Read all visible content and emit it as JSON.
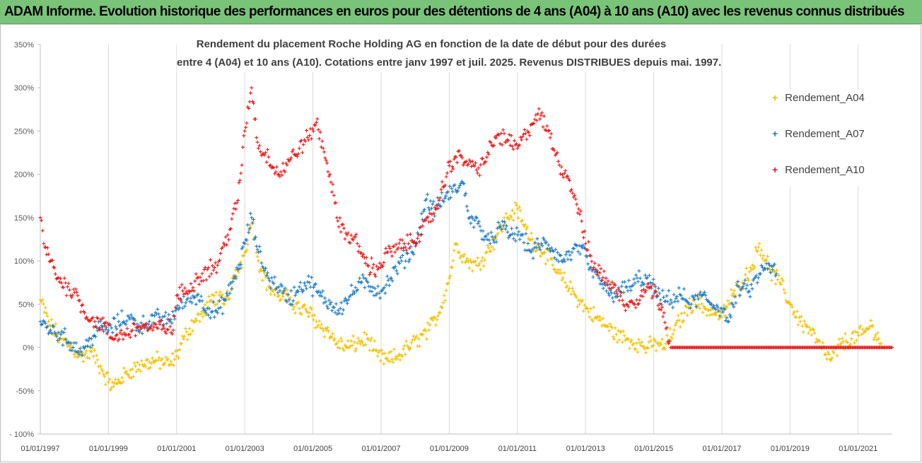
{
  "header": {
    "banner_title": "ADAM Informe. Evolution historique des performances en euros pour des détentions de 4 ans (A04) à 10 ans (A10) avec les revenus connus distribués"
  },
  "chart_data": {
    "type": "scatter",
    "title_line1": "Rendement du placement Roche Holding AG en fonction de la date de début pour des durées",
    "title_line2": "entre 4 (A04) et 10 ans (A10).  Cotations entre janv 1997 et juil. 2025. Revenus DISTRIBUES depuis mai. 1997.",
    "y_axis": {
      "min": -100,
      "max": 350,
      "step": 50,
      "tick_labels": [
        "- 100%",
        "-50%",
        "0%",
        "50%",
        "100%",
        "150%",
        "200%",
        "250%",
        "300%",
        "350%"
      ]
    },
    "x_axis": {
      "range": [
        "1997-01-01",
        "2022-01-01"
      ],
      "tick_labels": [
        "01/01/1997",
        "01/01/1999",
        "01/01/2001",
        "01/01/2003",
        "01/01/2005",
        "01/01/2007",
        "01/01/2009",
        "01/01/2011",
        "01/01/2013",
        "01/01/2015",
        "01/01/2017",
        "01/01/2019",
        "01/01/2021"
      ]
    },
    "grid": {
      "horizontal": false,
      "vertical": true
    },
    "legend_position": "right",
    "marker": "+",
    "series": [
      {
        "name": "Rendement_A04",
        "color": "#f2c100",
        "points": [
          [
            1997.0,
            55
          ],
          [
            1997.3,
            25
          ],
          [
            1997.6,
            10
          ],
          [
            1997.9,
            0
          ],
          [
            1998.2,
            -10
          ],
          [
            1998.5,
            -5
          ],
          [
            1998.8,
            -25
          ],
          [
            1999.0,
            -40
          ],
          [
            1999.15,
            -45
          ],
          [
            1999.4,
            -35
          ],
          [
            1999.7,
            -25
          ],
          [
            2000.0,
            -20
          ],
          [
            2000.4,
            -15
          ],
          [
            2000.8,
            -20
          ],
          [
            2001.0,
            -10
          ],
          [
            2001.2,
            10
          ],
          [
            2001.5,
            30
          ],
          [
            2001.8,
            40
          ],
          [
            2002.1,
            60
          ],
          [
            2002.4,
            50
          ],
          [
            2002.7,
            80
          ],
          [
            2003.0,
            110
          ],
          [
            2003.2,
            150
          ],
          [
            2003.4,
            100
          ],
          [
            2003.7,
            70
          ],
          [
            2004.0,
            60
          ],
          [
            2004.3,
            55
          ],
          [
            2004.6,
            45
          ],
          [
            2004.9,
            40
          ],
          [
            2005.1,
            30
          ],
          [
            2005.4,
            20
          ],
          [
            2005.7,
            5
          ],
          [
            2006.0,
            0
          ],
          [
            2006.3,
            5
          ],
          [
            2006.6,
            10
          ],
          [
            2006.9,
            -10
          ],
          [
            2007.2,
            -15
          ],
          [
            2007.5,
            -10
          ],
          [
            2007.8,
            0
          ],
          [
            2008.1,
            10
          ],
          [
            2008.4,
            20
          ],
          [
            2008.7,
            40
          ],
          [
            2009.0,
            80
          ],
          [
            2009.2,
            120
          ],
          [
            2009.5,
            100
          ],
          [
            2009.8,
            95
          ],
          [
            2010.1,
            110
          ],
          [
            2010.4,
            130
          ],
          [
            2010.7,
            150
          ],
          [
            2011.0,
            160
          ],
          [
            2011.2,
            140
          ],
          [
            2011.5,
            120
          ],
          [
            2011.8,
            110
          ],
          [
            2012.1,
            90
          ],
          [
            2012.4,
            75
          ],
          [
            2012.7,
            60
          ],
          [
            2013.0,
            45
          ],
          [
            2013.3,
            35
          ],
          [
            2013.6,
            25
          ],
          [
            2013.9,
            15
          ],
          [
            2014.2,
            10
          ],
          [
            2014.5,
            5
          ],
          [
            2014.8,
            0
          ],
          [
            2015.1,
            5
          ],
          [
            2015.3,
            0
          ],
          [
            2015.6,
            20
          ],
          [
            2015.9,
            40
          ],
          [
            2016.2,
            55
          ],
          [
            2016.5,
            45
          ],
          [
            2016.8,
            40
          ],
          [
            2017.0,
            35
          ],
          [
            2017.3,
            60
          ],
          [
            2017.6,
            75
          ],
          [
            2017.9,
            95
          ],
          [
            2018.1,
            120
          ],
          [
            2018.4,
            90
          ],
          [
            2018.7,
            75
          ],
          [
            2019.0,
            50
          ],
          [
            2019.3,
            30
          ],
          [
            2019.6,
            20
          ],
          [
            2019.9,
            0
          ],
          [
            2020.2,
            -15
          ],
          [
            2020.5,
            5
          ],
          [
            2020.8,
            10
          ],
          [
            2021.1,
            15
          ],
          [
            2021.4,
            25
          ],
          [
            2021.6,
            10
          ],
          [
            2021.7,
            0
          ]
        ]
      },
      {
        "name": "Rendement_A07",
        "color": "#1f7ac2",
        "points": [
          [
            1997.0,
            30
          ],
          [
            1997.3,
            20
          ],
          [
            1997.6,
            15
          ],
          [
            1997.9,
            5
          ],
          [
            1998.2,
            -5
          ],
          [
            1998.5,
            10
          ],
          [
            1998.8,
            25
          ],
          [
            1999.0,
            20
          ],
          [
            1999.3,
            30
          ],
          [
            1999.6,
            35
          ],
          [
            1999.9,
            25
          ],
          [
            2000.2,
            30
          ],
          [
            2000.5,
            35
          ],
          [
            2000.8,
            30
          ],
          [
            2001.0,
            45
          ],
          [
            2001.3,
            55
          ],
          [
            2001.6,
            60
          ],
          [
            2001.9,
            45
          ],
          [
            2002.2,
            40
          ],
          [
            2002.5,
            60
          ],
          [
            2002.8,
            90
          ],
          [
            2003.0,
            120
          ],
          [
            2003.2,
            150
          ],
          [
            2003.4,
            110
          ],
          [
            2003.7,
            80
          ],
          [
            2004.0,
            70
          ],
          [
            2004.3,
            55
          ],
          [
            2004.6,
            70
          ],
          [
            2004.9,
            75
          ],
          [
            2005.2,
            60
          ],
          [
            2005.5,
            50
          ],
          [
            2005.8,
            45
          ],
          [
            2006.1,
            60
          ],
          [
            2006.4,
            75
          ],
          [
            2006.7,
            70
          ],
          [
            2007.0,
            65
          ],
          [
            2007.3,
            80
          ],
          [
            2007.6,
            100
          ],
          [
            2007.9,
            110
          ],
          [
            2008.1,
            130
          ],
          [
            2008.3,
            170
          ],
          [
            2008.6,
            160
          ],
          [
            2008.9,
            175
          ],
          [
            2009.1,
            180
          ],
          [
            2009.4,
            190
          ],
          [
            2009.6,
            150
          ],
          [
            2009.9,
            140
          ],
          [
            2010.2,
            120
          ],
          [
            2010.5,
            140
          ],
          [
            2010.8,
            130
          ],
          [
            2011.1,
            130
          ],
          [
            2011.4,
            110
          ],
          [
            2011.7,
            120
          ],
          [
            2012.0,
            115
          ],
          [
            2012.3,
            100
          ],
          [
            2012.6,
            110
          ],
          [
            2012.9,
            115
          ],
          [
            2013.1,
            90
          ],
          [
            2013.4,
            80
          ],
          [
            2013.7,
            60
          ],
          [
            2014.0,
            65
          ],
          [
            2014.3,
            70
          ],
          [
            2014.6,
            80
          ],
          [
            2014.9,
            75
          ],
          [
            2015.2,
            55
          ],
          [
            2015.5,
            55
          ],
          [
            2015.8,
            60
          ],
          [
            2016.1,
            50
          ],
          [
            2016.4,
            60
          ],
          [
            2016.7,
            50
          ],
          [
            2017.0,
            45
          ],
          [
            2017.2,
            30
          ],
          [
            2017.5,
            70
          ],
          [
            2017.8,
            65
          ],
          [
            2018.1,
            85
          ],
          [
            2018.4,
            95
          ],
          [
            2018.6,
            85
          ]
        ]
      },
      {
        "name": "Rendement_A10",
        "color": "#e81818",
        "points": [
          [
            1997.0,
            150
          ],
          [
            1997.1,
            120
          ],
          [
            1997.3,
            100
          ],
          [
            1997.5,
            80
          ],
          [
            1997.8,
            70
          ],
          [
            1998.1,
            60
          ],
          [
            1998.3,
            40
          ],
          [
            1998.6,
            30
          ],
          [
            1998.9,
            25
          ],
          [
            1999.1,
            10
          ],
          [
            1999.4,
            15
          ],
          [
            1999.7,
            20
          ],
          [
            2000.0,
            25
          ],
          [
            2000.3,
            20
          ],
          [
            2000.6,
            25
          ],
          [
            2000.9,
            20
          ],
          [
            2001.0,
            60
          ],
          [
            2001.3,
            65
          ],
          [
            2001.6,
            80
          ],
          [
            2001.9,
            90
          ],
          [
            2002.2,
            95
          ],
          [
            2002.5,
            130
          ],
          [
            2002.8,
            170
          ],
          [
            2003.0,
            250
          ],
          [
            2003.2,
            300
          ],
          [
            2003.4,
            230
          ],
          [
            2003.7,
            220
          ],
          [
            2004.0,
            200
          ],
          [
            2004.3,
            215
          ],
          [
            2004.6,
            230
          ],
          [
            2004.9,
            245
          ],
          [
            2005.1,
            260
          ],
          [
            2005.3,
            230
          ],
          [
            2005.5,
            200
          ],
          [
            2005.7,
            150
          ],
          [
            2006.0,
            130
          ],
          [
            2006.3,
            120
          ],
          [
            2006.6,
            95
          ],
          [
            2006.9,
            90
          ],
          [
            2007.2,
            110
          ],
          [
            2007.5,
            115
          ],
          [
            2007.8,
            120
          ],
          [
            2008.1,
            130
          ],
          [
            2008.4,
            145
          ],
          [
            2008.7,
            170
          ],
          [
            2009.0,
            210
          ],
          [
            2009.2,
            220
          ],
          [
            2009.5,
            215
          ],
          [
            2009.8,
            205
          ],
          [
            2010.1,
            220
          ],
          [
            2010.4,
            245
          ],
          [
            2010.7,
            240
          ],
          [
            2011.0,
            230
          ],
          [
            2011.3,
            250
          ],
          [
            2011.6,
            270
          ],
          [
            2011.9,
            250
          ],
          [
            2012.2,
            215
          ],
          [
            2012.5,
            195
          ],
          [
            2012.8,
            160
          ],
          [
            2013.0,
            120
          ],
          [
            2013.3,
            90
          ],
          [
            2013.6,
            80
          ],
          [
            2013.9,
            65
          ],
          [
            2014.2,
            50
          ],
          [
            2014.5,
            55
          ],
          [
            2014.8,
            70
          ],
          [
            2015.1,
            60
          ],
          [
            2015.3,
            40
          ],
          [
            2015.5,
            0
          ],
          [
            2016.5,
            0
          ],
          [
            2017.5,
            0
          ],
          [
            2018.5,
            0
          ],
          [
            2019.5,
            0
          ],
          [
            2020.5,
            0
          ],
          [
            2021.5,
            0
          ],
          [
            2021.99,
            0
          ]
        ]
      }
    ]
  }
}
